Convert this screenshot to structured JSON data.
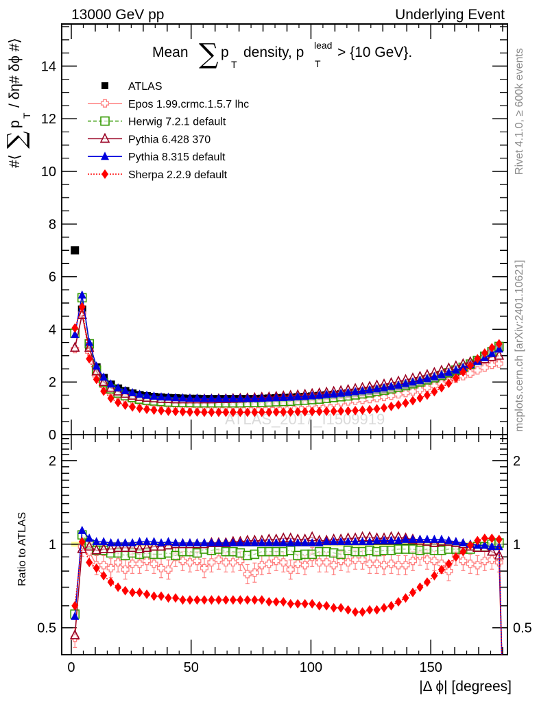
{
  "chart_data": [
    {
      "type": "scatter",
      "panel": "main",
      "title": "Mean ∑ p_T density, p_T^lead > {10 GeV}.",
      "title_parts": {
        "prefix": "Mean",
        "sum": "∑",
        "p": "p",
        "sub": "T",
        "mid": "density, p",
        "sup": "lead",
        "sub2": "T",
        "suffix": "> {10 GeV}."
      },
      "top_left_label": "13000 GeV pp",
      "top_right_label": "Underlying Event",
      "ylabel": "#⟨ ∑ p_T / δη# δϕ #⟩",
      "ylabel_parts": {
        "a": "#⟨",
        "sum": "∑",
        "p": "p",
        "sub": "T",
        "b": "/ δη# δϕ #⟩"
      },
      "xlabel": "|Δ ϕ| [degrees]",
      "xlim": [
        -4,
        182
      ],
      "ylim": [
        0,
        15.6
      ],
      "yticks": [
        0,
        2,
        4,
        6,
        8,
        10,
        12,
        14
      ],
      "xticks": [
        0,
        50,
        100,
        150
      ],
      "watermark": "ATLAS_2017_I1509919",
      "side_labels": [
        "Rivet 4.1.0, ≥ 600k events",
        "mcplots.cern.ch [arXiv:2401.10621]"
      ],
      "legend_position": "top-left",
      "x": [
        1.5,
        4.5,
        7.5,
        10.5,
        13.5,
        16.5,
        19.5,
        22.5,
        25.5,
        28.5,
        31.5,
        34.5,
        37.5,
        40.5,
        43.5,
        46.5,
        49.5,
        52.5,
        55.5,
        58.5,
        61.5,
        64.5,
        67.5,
        70.5,
        73.5,
        76.5,
        79.5,
        82.5,
        85.5,
        88.5,
        91.5,
        94.5,
        97.5,
        100.5,
        103.5,
        106.5,
        109.5,
        112.5,
        115.5,
        118.5,
        121.5,
        124.5,
        127.5,
        130.5,
        133.5,
        136.5,
        139.5,
        142.5,
        145.5,
        148.5,
        151.5,
        154.5,
        157.5,
        160.5,
        163.5,
        166.5,
        169.5,
        172.5,
        175.5,
        178.5
      ],
      "series": [
        {
          "name": "ATLAS",
          "color": "#000000",
          "marker": "square-filled",
          "line": "none",
          "values": [
            7.0,
            4.75,
            3.35,
            2.55,
            2.15,
            1.9,
            1.75,
            1.65,
            1.56,
            1.5,
            1.46,
            1.43,
            1.41,
            1.39,
            1.38,
            1.37,
            1.36,
            1.36,
            1.35,
            1.35,
            1.35,
            1.35,
            1.35,
            1.35,
            1.35,
            1.35,
            1.36,
            1.37,
            1.38,
            1.39,
            1.4,
            1.42,
            1.43,
            1.45,
            1.47,
            1.49,
            1.51,
            1.53,
            1.56,
            1.59,
            1.62,
            1.65,
            1.69,
            1.73,
            1.77,
            1.82,
            1.87,
            1.92,
            1.98,
            2.05,
            2.12,
            2.2,
            2.3,
            2.4,
            2.52,
            2.65,
            2.8,
            2.95,
            3.15,
            3.3
          ]
        },
        {
          "name": "Epos 1.99.crmc.1.5.7 lhc",
          "color": "#ff8080",
          "marker": "cross-open",
          "line": "solid",
          "values": [
            3.25,
            4.6,
            3.15,
            2.25,
            1.85,
            1.62,
            1.47,
            1.37,
            1.3,
            1.24,
            1.2,
            1.17,
            1.15,
            1.13,
            1.12,
            1.11,
            1.1,
            1.1,
            1.09,
            1.09,
            1.09,
            1.09,
            1.09,
            1.09,
            1.09,
            1.09,
            1.09,
            1.1,
            1.1,
            1.11,
            1.12,
            1.13,
            1.14,
            1.15,
            1.17,
            1.19,
            1.21,
            1.23,
            1.26,
            1.29,
            1.32,
            1.35,
            1.39,
            1.43,
            1.48,
            1.53,
            1.58,
            1.64,
            1.71,
            1.78,
            1.86,
            1.94,
            2.03,
            2.12,
            2.22,
            2.32,
            2.44,
            2.55,
            2.65,
            2.7
          ]
        },
        {
          "name": "Herwig 7.2.1 default",
          "color": "#339900",
          "marker": "square-open",
          "line": "dashed",
          "values": [
            3.85,
            5.2,
            3.45,
            2.45,
            1.98,
            1.74,
            1.58,
            1.48,
            1.41,
            1.35,
            1.31,
            1.28,
            1.26,
            1.24,
            1.23,
            1.22,
            1.22,
            1.21,
            1.21,
            1.21,
            1.21,
            1.21,
            1.21,
            1.21,
            1.22,
            1.22,
            1.23,
            1.24,
            1.25,
            1.26,
            1.27,
            1.29,
            1.31,
            1.33,
            1.35,
            1.38,
            1.41,
            1.44,
            1.47,
            1.51,
            1.55,
            1.59,
            1.64,
            1.69,
            1.74,
            1.8,
            1.86,
            1.93,
            2.0,
            2.08,
            2.16,
            2.25,
            2.35,
            2.45,
            2.56,
            2.68,
            2.82,
            2.98,
            3.15,
            3.35
          ]
        },
        {
          "name": "Pythia 6.428 370",
          "color": "#990022",
          "marker": "triangle-open",
          "line": "solid",
          "values": [
            3.3,
            4.55,
            3.3,
            2.4,
            2.0,
            1.78,
            1.64,
            1.55,
            1.48,
            1.43,
            1.4,
            1.38,
            1.36,
            1.35,
            1.34,
            1.34,
            1.34,
            1.34,
            1.34,
            1.34,
            1.35,
            1.35,
            1.36,
            1.37,
            1.38,
            1.39,
            1.41,
            1.42,
            1.44,
            1.46,
            1.48,
            1.5,
            1.52,
            1.55,
            1.57,
            1.6,
            1.63,
            1.66,
            1.7,
            1.74,
            1.78,
            1.82,
            1.87,
            1.91,
            1.96,
            2.02,
            2.08,
            2.14,
            2.2,
            2.27,
            2.35,
            2.43,
            2.52,
            2.6,
            2.68,
            2.76,
            2.82,
            2.87,
            2.95,
            3.0
          ]
        },
        {
          "name": "Pythia 8.315 default",
          "color": "#0000dd",
          "marker": "triangle-filled",
          "line": "solid",
          "values": [
            3.8,
            5.3,
            3.5,
            2.6,
            2.18,
            1.92,
            1.77,
            1.67,
            1.59,
            1.53,
            1.49,
            1.46,
            1.43,
            1.42,
            1.4,
            1.39,
            1.38,
            1.38,
            1.37,
            1.37,
            1.37,
            1.37,
            1.37,
            1.37,
            1.37,
            1.37,
            1.38,
            1.39,
            1.4,
            1.41,
            1.42,
            1.44,
            1.45,
            1.47,
            1.49,
            1.52,
            1.54,
            1.57,
            1.6,
            1.63,
            1.66,
            1.7,
            1.74,
            1.78,
            1.83,
            1.88,
            1.94,
            2.0,
            2.06,
            2.13,
            2.2,
            2.28,
            2.36,
            2.45,
            2.55,
            2.66,
            2.78,
            2.92,
            3.08,
            3.25
          ]
        },
        {
          "name": "Sherpa 2.2.9 default",
          "color": "#ff0000",
          "marker": "diamond-filled",
          "line": "dotted",
          "values": [
            4.05,
            4.85,
            2.88,
            2.1,
            1.65,
            1.38,
            1.22,
            1.12,
            1.05,
            1.0,
            0.96,
            0.93,
            0.91,
            0.89,
            0.88,
            0.87,
            0.86,
            0.86,
            0.85,
            0.85,
            0.85,
            0.85,
            0.85,
            0.85,
            0.85,
            0.85,
            0.85,
            0.85,
            0.86,
            0.86,
            0.86,
            0.87,
            0.87,
            0.88,
            0.88,
            0.89,
            0.89,
            0.9,
            0.9,
            0.91,
            0.93,
            0.95,
            0.98,
            1.02,
            1.07,
            1.13,
            1.2,
            1.29,
            1.39,
            1.5,
            1.63,
            1.78,
            1.95,
            2.15,
            2.38,
            2.62,
            2.88,
            3.1,
            3.3,
            3.45
          ]
        }
      ]
    },
    {
      "type": "scatter",
      "panel": "ratio",
      "ylabel": "Ratio to ATLAS",
      "xlabel": "|Δ ϕ| [degrees]",
      "xlim": [
        -4,
        182
      ],
      "ylim": [
        0.4,
        2.48
      ],
      "yscale": "log",
      "yticks": [
        0.5,
        1,
        2
      ],
      "xticks": [
        0,
        50,
        100,
        150
      ],
      "reference_band": {
        "color": "#ffff66",
        "center": 1.0,
        "half_width": 0.02
      },
      "x": [
        1.5,
        4.5,
        7.5,
        10.5,
        13.5,
        16.5,
        19.5,
        22.5,
        25.5,
        28.5,
        31.5,
        34.5,
        37.5,
        40.5,
        43.5,
        46.5,
        49.5,
        52.5,
        55.5,
        58.5,
        61.5,
        64.5,
        67.5,
        70.5,
        73.5,
        76.5,
        79.5,
        82.5,
        85.5,
        88.5,
        91.5,
        94.5,
        97.5,
        100.5,
        103.5,
        106.5,
        109.5,
        112.5,
        115.5,
        118.5,
        121.5,
        124.5,
        127.5,
        130.5,
        133.5,
        136.5,
        139.5,
        142.5,
        145.5,
        148.5,
        151.5,
        154.5,
        157.5,
        160.5,
        163.5,
        166.5,
        169.5,
        172.5,
        175.5,
        178.5
      ],
      "series": [
        {
          "name": "Epos 1.99.crmc.1.5.7 lhc",
          "color": "#ff8080",
          "marker": "cross-open",
          "line": "solid",
          "values": [
            0.46,
            0.98,
            0.94,
            0.84,
            0.84,
            0.82,
            0.86,
            0.81,
            0.85,
            0.85,
            0.87,
            0.85,
            0.82,
            0.81,
            0.9,
            0.87,
            0.86,
            0.87,
            0.82,
            0.86,
            0.88,
            0.86,
            0.86,
            0.87,
            0.78,
            0.79,
            0.84,
            0.85,
            0.87,
            0.86,
            0.81,
            0.85,
            0.84,
            0.9,
            0.86,
            0.86,
            0.84,
            0.87,
            0.86,
            0.88,
            0.88,
            0.85,
            0.85,
            0.84,
            0.85,
            0.84,
            0.84,
            0.87,
            0.91,
            0.88,
            0.87,
            0.85,
            0.8,
            0.91,
            0.87,
            0.85,
            0.84,
            0.87,
            0.88,
            0.86
          ]
        },
        {
          "name": "Herwig 7.2.1 default",
          "color": "#339900",
          "marker": "square-open",
          "line": "dashed",
          "values": [
            0.56,
            1.08,
            1.0,
            0.95,
            0.95,
            0.93,
            0.93,
            0.91,
            0.93,
            0.92,
            0.93,
            0.92,
            0.92,
            0.93,
            0.91,
            0.94,
            0.94,
            0.93,
            0.96,
            0.95,
            0.96,
            0.94,
            0.94,
            0.93,
            0.91,
            0.92,
            0.94,
            0.94,
            0.94,
            0.94,
            0.95,
            0.91,
            0.92,
            0.92,
            0.94,
            0.94,
            0.93,
            0.92,
            0.95,
            0.94,
            0.94,
            0.95,
            0.94,
            0.95,
            0.95,
            0.96,
            0.96,
            0.96,
            0.95,
            0.96,
            0.95,
            0.95,
            0.96,
            0.96,
            0.96,
            0.96,
            0.98,
            0.98,
            1.0,
            1.01
          ]
        },
        {
          "name": "Pythia 6.428 370",
          "color": "#990022",
          "marker": "triangle-open",
          "line": "solid",
          "values": [
            0.47,
            0.96,
            0.98,
            0.95,
            0.96,
            0.96,
            0.97,
            0.97,
            0.97,
            0.96,
            0.97,
            0.98,
            0.98,
            0.99,
            1.0,
            1.0,
            1.0,
            1.0,
            1.0,
            1.01,
            1.01,
            1.01,
            1.02,
            1.02,
            1.03,
            1.03,
            1.03,
            1.04,
            1.04,
            1.05,
            1.05,
            1.04,
            1.04,
            1.06,
            1.03,
            1.03,
            1.04,
            1.04,
            1.05,
            1.05,
            1.06,
            1.06,
            1.05,
            1.05,
            1.06,
            1.06,
            1.05,
            1.04,
            1.03,
            1.02,
            1.01,
            1.02,
            1.02,
            1.01,
            1.0,
            0.98,
            0.97,
            0.97,
            0.94,
            0.91
          ]
        },
        {
          "name": "Pythia 8.315 default",
          "color": "#0000dd",
          "marker": "triangle-filled",
          "line": "solid",
          "values": [
            0.55,
            1.12,
            1.05,
            1.02,
            1.02,
            1.01,
            1.01,
            1.01,
            1.01,
            1.02,
            1.02,
            1.02,
            1.01,
            1.02,
            1.01,
            1.01,
            1.01,
            1.01,
            1.01,
            1.01,
            1.01,
            1.01,
            1.01,
            1.01,
            1.01,
            1.01,
            1.01,
            1.01,
            1.01,
            1.01,
            1.01,
            1.01,
            1.01,
            1.01,
            1.01,
            1.02,
            1.02,
            1.02,
            1.02,
            1.02,
            1.02,
            1.02,
            1.03,
            1.03,
            1.03,
            1.03,
            1.04,
            1.04,
            1.04,
            1.04,
            1.04,
            1.04,
            1.03,
            1.02,
            1.01,
            1.0,
            0.99,
            0.99,
            0.98,
            0.98
          ]
        },
        {
          "name": "Sherpa 2.2.9 default",
          "color": "#ff0000",
          "marker": "diamond-filled",
          "line": "dotted",
          "values": [
            0.6,
            1.02,
            0.86,
            0.82,
            0.77,
            0.73,
            0.7,
            0.68,
            0.67,
            0.67,
            0.66,
            0.65,
            0.65,
            0.64,
            0.64,
            0.63,
            0.63,
            0.63,
            0.63,
            0.63,
            0.63,
            0.63,
            0.63,
            0.63,
            0.63,
            0.63,
            0.63,
            0.62,
            0.62,
            0.62,
            0.61,
            0.61,
            0.61,
            0.61,
            0.6,
            0.6,
            0.59,
            0.59,
            0.58,
            0.57,
            0.57,
            0.58,
            0.58,
            0.59,
            0.6,
            0.62,
            0.64,
            0.67,
            0.7,
            0.73,
            0.77,
            0.81,
            0.85,
            0.9,
            0.94,
            0.99,
            1.03,
            1.05,
            1.05,
            1.04
          ]
        }
      ]
    }
  ],
  "legend": [
    {
      "label": "ATLAS",
      "color": "#000000",
      "marker": "square-filled",
      "line": "none"
    },
    {
      "label": "Epos 1.99.crmc.1.5.7 lhc",
      "color": "#ff8080",
      "marker": "cross-open",
      "line": "solid"
    },
    {
      "label": "Herwig 7.2.1 default",
      "color": "#339900",
      "marker": "square-open",
      "line": "dashed"
    },
    {
      "label": "Pythia 6.428 370",
      "color": "#990022",
      "marker": "triangle-open",
      "line": "solid"
    },
    {
      "label": "Pythia 8.315 default",
      "color": "#0000dd",
      "marker": "triangle-filled",
      "line": "solid"
    },
    {
      "label": "Sherpa 2.2.9 default",
      "color": "#ff0000",
      "marker": "diamond-filled",
      "line": "dotted"
    }
  ]
}
